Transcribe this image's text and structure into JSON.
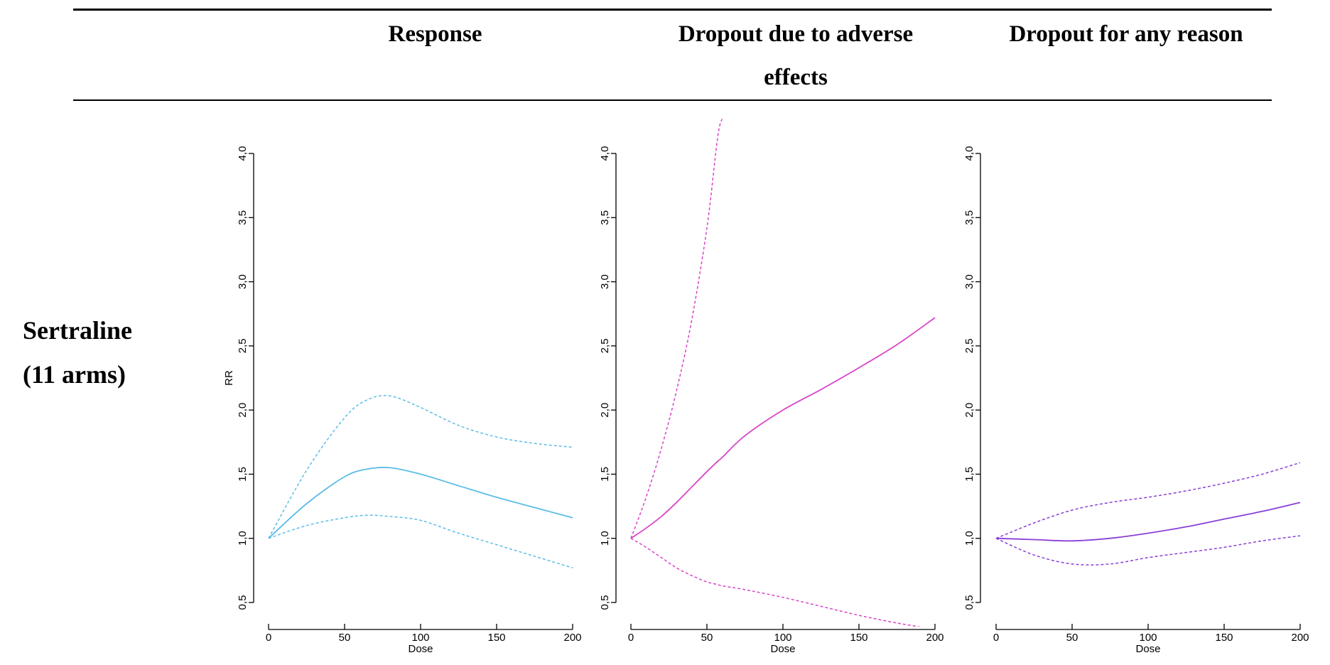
{
  "table": {
    "columns": [
      "Response",
      "Dropout due to adverse effects",
      "Dropout for any reason"
    ],
    "row_label": [
      "Sertraline",
      "(11 arms)"
    ]
  },
  "chart_data": [
    {
      "type": "line",
      "title": "Response",
      "xlabel": "Dose",
      "ylabel": "RR",
      "xlim": [
        0,
        200
      ],
      "ylim": [
        0.5,
        4.0
      ],
      "xticks": [
        0,
        50,
        100,
        150,
        200
      ],
      "yticks": [
        0.5,
        1.0,
        1.5,
        2.0,
        2.5,
        3.0,
        3.5,
        4.0
      ],
      "ytick_labels": [
        "0,5",
        "1,0",
        "1,5",
        "2,0",
        "2,5",
        "3,0",
        "3,5",
        "4,0"
      ],
      "color": "#5bbde6",
      "x": [
        0,
        25,
        50,
        65,
        80,
        100,
        125,
        150,
        175,
        200
      ],
      "series": [
        {
          "style": "solid",
          "values": [
            1.0,
            1.27,
            1.48,
            1.54,
            1.55,
            1.5,
            1.41,
            1.32,
            1.24,
            1.16
          ]
        },
        {
          "style": "dashed",
          "values": [
            1.0,
            1.53,
            1.94,
            2.08,
            2.11,
            2.02,
            1.88,
            1.79,
            1.74,
            1.71
          ]
        },
        {
          "style": "dashed",
          "values": [
            1.0,
            1.1,
            1.16,
            1.18,
            1.17,
            1.14,
            1.04,
            0.95,
            0.86,
            0.77
          ]
        }
      ]
    },
    {
      "type": "line",
      "title": "Dropout due to adverse effects",
      "xlabel": "Dose",
      "ylabel": "",
      "xlim": [
        0,
        200
      ],
      "ylim": [
        0.5,
        4.0
      ],
      "xticks": [
        0,
        50,
        100,
        150,
        200
      ],
      "yticks": [
        0.5,
        1.0,
        1.5,
        2.0,
        2.5,
        3.0,
        3.5,
        4.0
      ],
      "ytick_labels": [
        "0,5",
        "1,0",
        "1,5",
        "2,0",
        "2,5",
        "3,0",
        "3,5",
        "4,0"
      ],
      "color": "#d845c8",
      "x": [
        0,
        10,
        20,
        30,
        40,
        50,
        57,
        60,
        75,
        100,
        125,
        150,
        175,
        200
      ],
      "series": [
        {
          "style": "solid",
          "values": [
            1.0,
            1.08,
            1.17,
            1.28,
            1.4,
            1.52,
            1.6,
            1.63,
            1.8,
            2.0,
            2.16,
            2.33,
            2.51,
            2.72
          ]
        },
        {
          "style": "dashed",
          "values": [
            1.0,
            1.32,
            1.7,
            2.15,
            2.7,
            3.42,
            4.12,
            4.27,
            null,
            null,
            null,
            null,
            null,
            null
          ]
        },
        {
          "style": "dashed",
          "values": [
            1.0,
            0.93,
            0.85,
            0.77,
            0.71,
            0.66,
            0.64,
            0.63,
            0.6,
            0.54,
            0.47,
            0.4,
            0.34,
            0.29
          ]
        }
      ]
    },
    {
      "type": "line",
      "title": "Dropout for any reason",
      "xlabel": "Dose",
      "ylabel": "",
      "xlim": [
        0,
        200
      ],
      "ylim": [
        0.5,
        4.0
      ],
      "xticks": [
        0,
        50,
        100,
        150,
        200
      ],
      "yticks": [
        0.5,
        1.0,
        1.5,
        2.0,
        2.5,
        3.0,
        3.5,
        4.0
      ],
      "ytick_labels": [
        "0,5",
        "1,0",
        "1,5",
        "2,0",
        "2,5",
        "3,0",
        "3,5",
        "4,0"
      ],
      "color": "#8a3fd8",
      "x": [
        0,
        25,
        50,
        75,
        100,
        125,
        150,
        175,
        200
      ],
      "series": [
        {
          "style": "solid",
          "values": [
            1.0,
            0.99,
            0.98,
            1.0,
            1.04,
            1.09,
            1.15,
            1.21,
            1.28
          ]
        },
        {
          "style": "dashed",
          "values": [
            1.0,
            1.12,
            1.22,
            1.28,
            1.32,
            1.37,
            1.43,
            1.5,
            1.59
          ]
        },
        {
          "style": "dashed",
          "values": [
            1.0,
            0.87,
            0.8,
            0.8,
            0.85,
            0.89,
            0.93,
            0.98,
            1.02
          ]
        }
      ]
    }
  ]
}
